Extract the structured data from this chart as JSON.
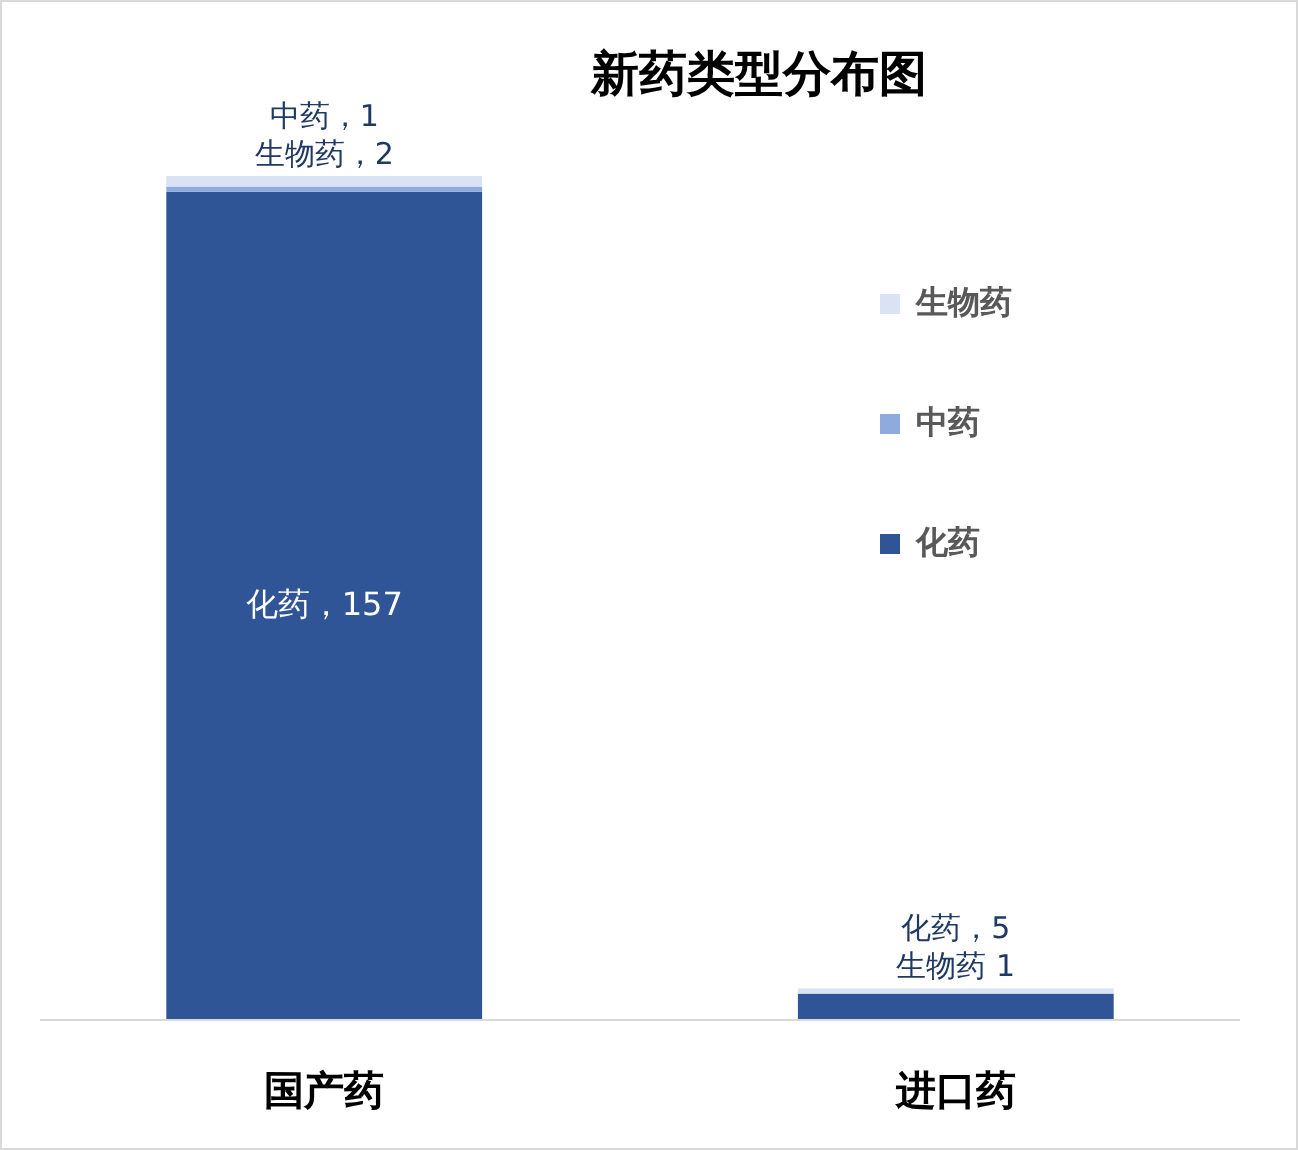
{
  "chart_data": {
    "type": "bar",
    "title": "新药类型分布图",
    "stacked": true,
    "categories": [
      "国产药",
      "进口药"
    ],
    "legend": "right",
    "series": [
      {
        "name": "化药",
        "color": "#2f5597",
        "values": [
          157,
          5
        ],
        "value_labels": [
          "化药，157",
          "化药，5"
        ]
      },
      {
        "name": "中药",
        "color": "#8faadc",
        "values": [
          1,
          null
        ],
        "value_labels": [
          "中药，1",
          null
        ]
      },
      {
        "name": "生物药",
        "color": "#dae3f3",
        "values": [
          2,
          1
        ],
        "value_labels": [
          "生物药，2",
          "生物药 1"
        ]
      }
    ]
  }
}
